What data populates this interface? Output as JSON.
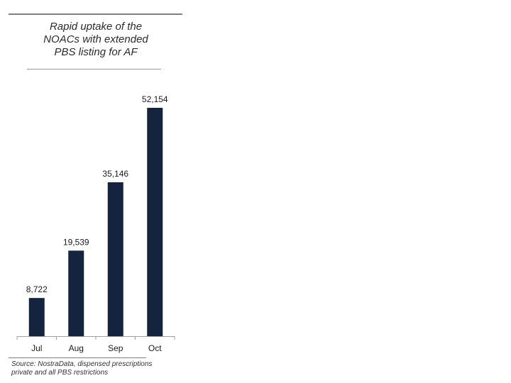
{
  "title_lines": [
    "Rapid uptake of the",
    "NOACs with extended",
    "PBS listing for AF"
  ],
  "source_lines": [
    "Source: NostraData, dispensed prescriptions",
    "private and all PBS restrictions"
  ],
  "colors": {
    "bar": "#14243f",
    "axis": "#a0a0a0",
    "text": "#1a1a1a"
  },
  "chart_data": {
    "type": "bar",
    "categories": [
      "Jul",
      "Aug",
      "Sep",
      "Oct"
    ],
    "values": [
      8722,
      19539,
      35146,
      52154
    ],
    "data_labels": [
      "8,722",
      "19,539",
      "35,146",
      "52,154"
    ],
    "title": "Rapid uptake of the NOACs with extended PBS listing for AF",
    "xlabel": "",
    "ylabel": "",
    "ylim": [
      0,
      52154
    ],
    "grid": false,
    "legend": "none"
  }
}
